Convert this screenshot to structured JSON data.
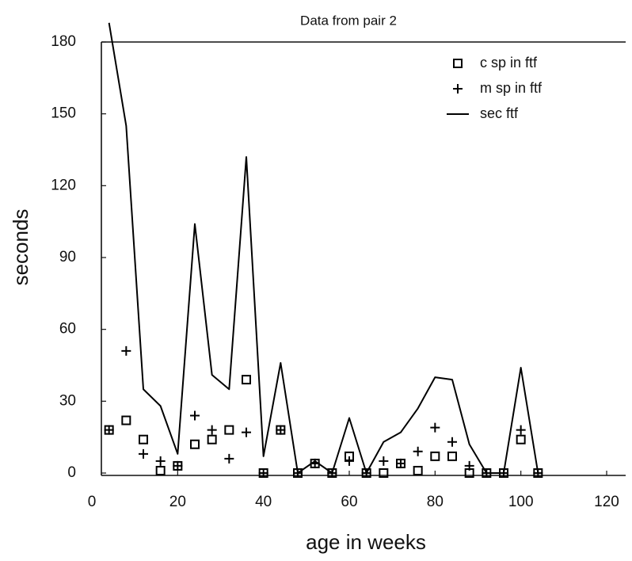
{
  "chart_data": {
    "type": "line",
    "title": "Data from pair 2",
    "xlabel": "age in weeks",
    "ylabel": "seconds",
    "x": [
      4,
      8,
      12,
      16,
      20,
      24,
      28,
      32,
      36,
      40,
      44,
      48,
      52,
      56,
      60,
      64,
      68,
      72,
      76,
      80,
      84,
      88,
      92,
      96,
      100,
      104
    ],
    "series": [
      {
        "name": "c sp in ftf",
        "color": "#000000",
        "marker": "square",
        "values": [
          18,
          22,
          14,
          1,
          3,
          12,
          14,
          18,
          39,
          0,
          18,
          0,
          4,
          0,
          7,
          0,
          0,
          4,
          1,
          7,
          7,
          0,
          0,
          0,
          14,
          0
        ]
      },
      {
        "name": "m sp in ftf",
        "color": "#000000",
        "marker": "plus",
        "values": [
          18,
          51,
          8,
          5,
          3,
          24,
          18,
          6,
          17,
          0,
          18,
          0,
          4,
          0,
          5,
          0,
          5,
          4,
          9,
          19,
          13,
          3,
          0,
          0,
          18,
          0
        ]
      },
      {
        "name": "sec ftf",
        "color": "#000000",
        "marker": "line",
        "values": [
          188,
          145,
          35,
          28,
          8,
          104,
          41,
          35,
          132,
          7,
          46,
          0,
          5,
          0,
          23,
          0,
          13,
          17,
          27,
          40,
          39,
          12,
          0,
          0,
          44,
          0
        ]
      }
    ],
    "xlim": [
      0,
      120
    ],
    "xticks": [
      0,
      20,
      40,
      60,
      80,
      100,
      120
    ],
    "ylim": [
      0,
      180
    ],
    "yticks": [
      0,
      30,
      60,
      90,
      120,
      150,
      180
    ],
    "grid": false,
    "legend": "upper right"
  }
}
